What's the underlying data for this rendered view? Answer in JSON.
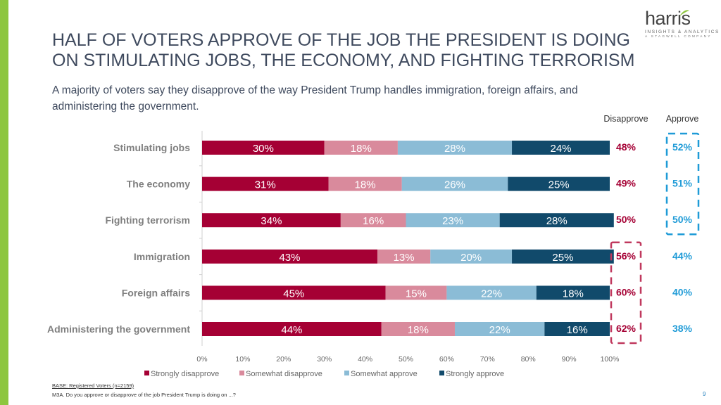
{
  "title": "HALF OF VOTERS APPROVE OF THE JOB THE PRESIDENT IS DOING ON STIMULATING JOBS, THE ECONOMY, AND FIGHTING TERRORISM",
  "subtitle": "A majority of voters say they disapprove of the way President Trump handles immigration, foreign affairs, and administering the government.",
  "logo": {
    "word": "harris",
    "line1": "INSIGHTS & ANALYTICS",
    "line2": "A STAGWELL COMPANY"
  },
  "footnote": {
    "base": "BASE: Registered Voters (n=2159)",
    "question": "M3A. Do you approve or disapprove of the job President Trump is doing on ...?"
  },
  "page_number": "9",
  "colors": {
    "accent_bar": "#8dc63f",
    "strongly_disapprove": "#a50034",
    "somewhat_disapprove": "#d98a9c",
    "somewhat_approve": "#8bbcd6",
    "strongly_approve": "#114a6b",
    "disapprove_text": "#a50034",
    "approve_text": "#1f9bd7",
    "disapprove_box": "#c0395e",
    "approve_box": "#1f9bd7"
  },
  "chart_data": {
    "type": "bar",
    "orientation": "horizontal",
    "stacked": true,
    "categories": [
      "Stimulating jobs",
      "The economy",
      "Fighting terrorism",
      "Immigration",
      "Foreign affairs",
      "Administering the government"
    ],
    "series": [
      {
        "name": "Strongly disapprove",
        "values": [
          30,
          31,
          34,
          43,
          45,
          44
        ]
      },
      {
        "name": "Somewhat disapprove",
        "values": [
          18,
          18,
          16,
          13,
          15,
          18
        ]
      },
      {
        "name": "Somewhat approve",
        "values": [
          28,
          26,
          23,
          20,
          22,
          22
        ]
      },
      {
        "name": "Strongly approve",
        "values": [
          24,
          25,
          28,
          25,
          18,
          16
        ]
      }
    ],
    "xlim": [
      0,
      100
    ],
    "xticks": [
      "0%",
      "10%",
      "20%",
      "30%",
      "40%",
      "50%",
      "60%",
      "70%",
      "80%",
      "90%",
      "100%"
    ],
    "legend_position": "bottom",
    "summary_headers": {
      "disapprove": "Disapprove",
      "approve": "Approve"
    },
    "disapprove_totals": [
      48,
      49,
      50,
      56,
      60,
      62
    ],
    "approve_totals": [
      52,
      51,
      50,
      44,
      40,
      38
    ]
  }
}
